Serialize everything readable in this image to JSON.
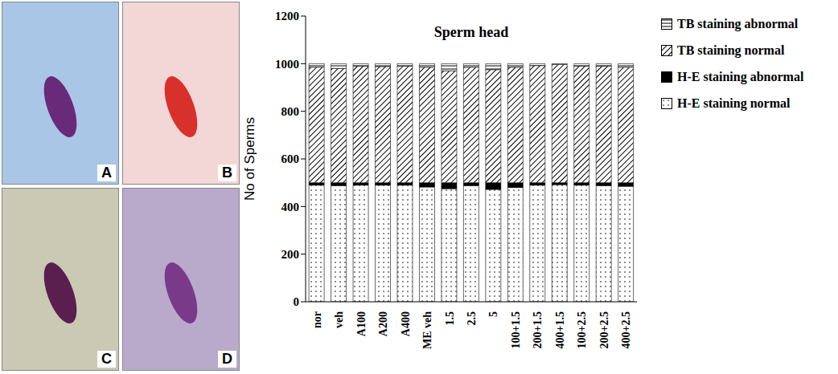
{
  "image_panels": [
    "A",
    "B",
    "C",
    "D"
  ],
  "chart_data": {
    "type": "bar",
    "stacked": true,
    "title": "Sperm head",
    "y_label": "No of Sperms",
    "categories": [
      "nor",
      "veh",
      "A100",
      "A200",
      "A400",
      "ME veh",
      "1.5",
      "2.5",
      "5",
      "100+1.5",
      "200+1.5",
      "400+1.5",
      "100+2.5",
      "200+2.5",
      "400+2.5"
    ],
    "series": [
      {
        "name": "H-E staining normal",
        "color": "#ffffff",
        "values": [
          490,
          488,
          490,
          490,
          490,
          482,
          475,
          488,
          472,
          480,
          490,
          492,
          490,
          488,
          485
        ]
      },
      {
        "name": "H-E staining abnormal",
        "color": "#000000",
        "values": [
          10,
          12,
          10,
          10,
          10,
          18,
          25,
          12,
          28,
          20,
          10,
          8,
          10,
          12,
          15
        ]
      },
      {
        "name": "TB staining normal",
        "color": "#ffffff",
        "values": [
          485,
          480,
          490,
          488,
          490,
          485,
          470,
          485,
          475,
          485,
          492,
          497,
          490,
          490,
          485
        ]
      },
      {
        "name": "TB staining abnormal",
        "color": "#ffffff",
        "values": [
          15,
          20,
          10,
          12,
          10,
          15,
          30,
          15,
          25,
          15,
          8,
          3,
          10,
          10,
          15
        ]
      }
    ],
    "ylim": [
      0,
      1200
    ],
    "yticks": [
      0,
      200,
      400,
      600,
      800,
      1000,
      1200
    ],
    "legend": "right",
    "grid": false
  }
}
